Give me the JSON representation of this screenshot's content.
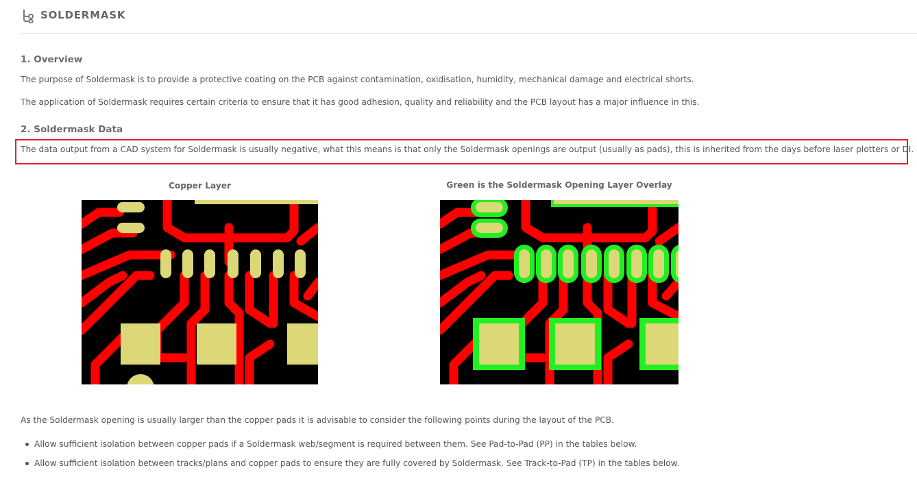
{
  "header": {
    "title": "SOLDERMASK",
    "icon": "tree-structure-icon"
  },
  "sections": {
    "overview": {
      "heading": "1. Overview",
      "p1": "The purpose of Soldermask is to provide a protective coating on the PCB against contamination, oxidisation, humidity, mechanical damage and electrical shorts.",
      "p2": "The application of Soldermask requires certain criteria to ensure that it has good adhesion, quality and reliability and the PCB layout has a major influence in this."
    },
    "data": {
      "heading": "2. Soldermask Data",
      "p1": "The data output from a CAD system for Soldermask is usually negative, what this means is that only the Soldermask openings are output (usually as pads), this is inherited from the days before laser plotters or DI."
    }
  },
  "figures": {
    "left_caption": "Copper Layer",
    "right_caption": "Green is the Soldermask Opening Layer Overlay"
  },
  "body": {
    "intro": "As the Soldermask opening is usually larger than the copper pads it is advisable to consider the following points during the layout of the PCB.",
    "bullets": [
      "Allow sufficient isolation between copper pads if a Soldermask web/segment is required between them. See Pad-to-Pad (PP) in the tables below.",
      "Allow sufficient isolation between tracks/plans and copper pads to ensure they are fully covered by Soldermask. See Track-to-Pad (TP) in the tables below."
    ]
  },
  "colors": {
    "highlight_border": "#d9262d",
    "copper_trace": "#ff0000",
    "pad": "#dcd878",
    "mask_opening": "#22ee22",
    "board": "#000000"
  }
}
